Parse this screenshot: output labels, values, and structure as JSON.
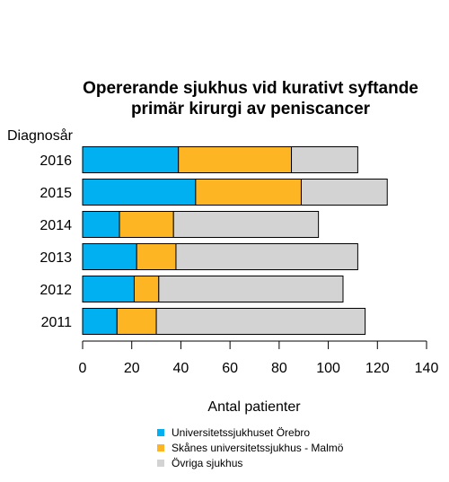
{
  "chart_data": {
    "type": "bar",
    "orientation": "horizontal",
    "stacked": true,
    "title_lines": [
      "Opererande sjukhus vid kurativt syftande",
      "primär kirurgi av peniscancer"
    ],
    "ylabel": "Diagnosår",
    "xlabel": "Antal patienter",
    "xlim": [
      0,
      140
    ],
    "xticks": [
      0,
      20,
      40,
      60,
      80,
      100,
      120,
      140
    ],
    "categories": [
      "2016",
      "2015",
      "2014",
      "2013",
      "2012",
      "2011"
    ],
    "series": [
      {
        "name": "Universitetssjukhuset Örebro",
        "color": "#00b0f0",
        "values": [
          39,
          46,
          15,
          22,
          21,
          14
        ]
      },
      {
        "name": "Skånes universitetssjukhus - Malmö",
        "color": "#fdb524",
        "values": [
          46,
          43,
          22,
          16,
          10,
          16
        ]
      },
      {
        "name": "Övriga sjukhus",
        "color": "#d3d3d3",
        "values": [
          27,
          35,
          59,
          74,
          75,
          85
        ]
      }
    ],
    "grid": false,
    "legend_position": "bottom"
  }
}
